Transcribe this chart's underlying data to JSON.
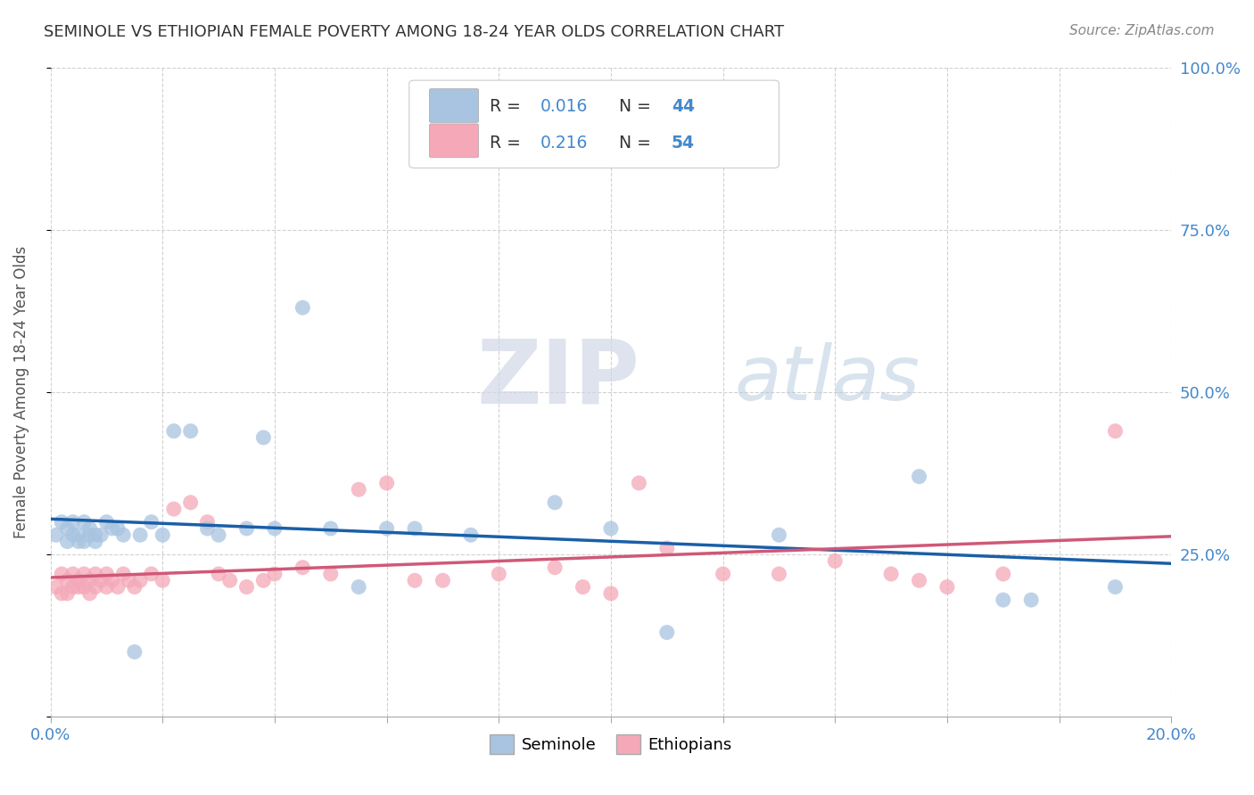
{
  "title": "SEMINOLE VS ETHIOPIAN FEMALE POVERTY AMONG 18-24 YEAR OLDS CORRELATION CHART",
  "source": "Source: ZipAtlas.com",
  "ylabel": "Female Poverty Among 18-24 Year Olds",
  "xlim": [
    0.0,
    0.2
  ],
  "ylim": [
    0.0,
    1.0
  ],
  "yticks": [
    0.0,
    0.25,
    0.5,
    0.75,
    1.0
  ],
  "ytick_labels": [
    "",
    "25.0%",
    "50.0%",
    "75.0%",
    "100.0%"
  ],
  "xticks": [
    0.0,
    0.02,
    0.04,
    0.06,
    0.08,
    0.1,
    0.12,
    0.14,
    0.16,
    0.18,
    0.2
  ],
  "seminole_R": 0.016,
  "seminole_N": 44,
  "ethiopians_R": 0.216,
  "ethiopians_N": 54,
  "seminole_color": "#a8c4e0",
  "ethiopians_color": "#f4a8b8",
  "seminole_line_color": "#1a5fa8",
  "ethiopians_line_color": "#d05878",
  "seminole_x": [
    0.001,
    0.002,
    0.003,
    0.003,
    0.004,
    0.004,
    0.005,
    0.005,
    0.006,
    0.006,
    0.007,
    0.007,
    0.008,
    0.008,
    0.009,
    0.01,
    0.011,
    0.012,
    0.013,
    0.015,
    0.016,
    0.018,
    0.02,
    0.022,
    0.025,
    0.028,
    0.03,
    0.035,
    0.038,
    0.04,
    0.045,
    0.05,
    0.055,
    0.06,
    0.065,
    0.075,
    0.09,
    0.1,
    0.11,
    0.13,
    0.155,
    0.17,
    0.175,
    0.19
  ],
  "seminole_y": [
    0.28,
    0.3,
    0.29,
    0.27,
    0.3,
    0.28,
    0.28,
    0.27,
    0.3,
    0.27,
    0.28,
    0.29,
    0.27,
    0.28,
    0.28,
    0.3,
    0.29,
    0.29,
    0.28,
    0.1,
    0.28,
    0.3,
    0.28,
    0.44,
    0.44,
    0.29,
    0.28,
    0.29,
    0.43,
    0.29,
    0.63,
    0.29,
    0.2,
    0.29,
    0.29,
    0.28,
    0.33,
    0.29,
    0.13,
    0.28,
    0.37,
    0.18,
    0.18,
    0.2
  ],
  "ethiopians_x": [
    0.001,
    0.002,
    0.002,
    0.003,
    0.003,
    0.004,
    0.004,
    0.005,
    0.005,
    0.006,
    0.006,
    0.007,
    0.007,
    0.008,
    0.008,
    0.009,
    0.01,
    0.01,
    0.011,
    0.012,
    0.013,
    0.014,
    0.015,
    0.016,
    0.018,
    0.02,
    0.022,
    0.025,
    0.028,
    0.03,
    0.032,
    0.035,
    0.038,
    0.04,
    0.045,
    0.05,
    0.055,
    0.06,
    0.065,
    0.07,
    0.08,
    0.09,
    0.095,
    0.1,
    0.105,
    0.11,
    0.12,
    0.13,
    0.14,
    0.15,
    0.155,
    0.16,
    0.17,
    0.19
  ],
  "ethiopians_y": [
    0.2,
    0.22,
    0.19,
    0.21,
    0.19,
    0.22,
    0.2,
    0.21,
    0.2,
    0.22,
    0.2,
    0.21,
    0.19,
    0.22,
    0.2,
    0.21,
    0.2,
    0.22,
    0.21,
    0.2,
    0.22,
    0.21,
    0.2,
    0.21,
    0.22,
    0.21,
    0.32,
    0.33,
    0.3,
    0.22,
    0.21,
    0.2,
    0.21,
    0.22,
    0.23,
    0.22,
    0.35,
    0.36,
    0.21,
    0.21,
    0.22,
    0.23,
    0.2,
    0.19,
    0.36,
    0.26,
    0.22,
    0.22,
    0.24,
    0.22,
    0.21,
    0.2,
    0.22,
    0.44
  ],
  "watermark_zip": "ZIP",
  "watermark_atlas": "atlas",
  "background_color": "#ffffff",
  "grid_color": "#cccccc"
}
